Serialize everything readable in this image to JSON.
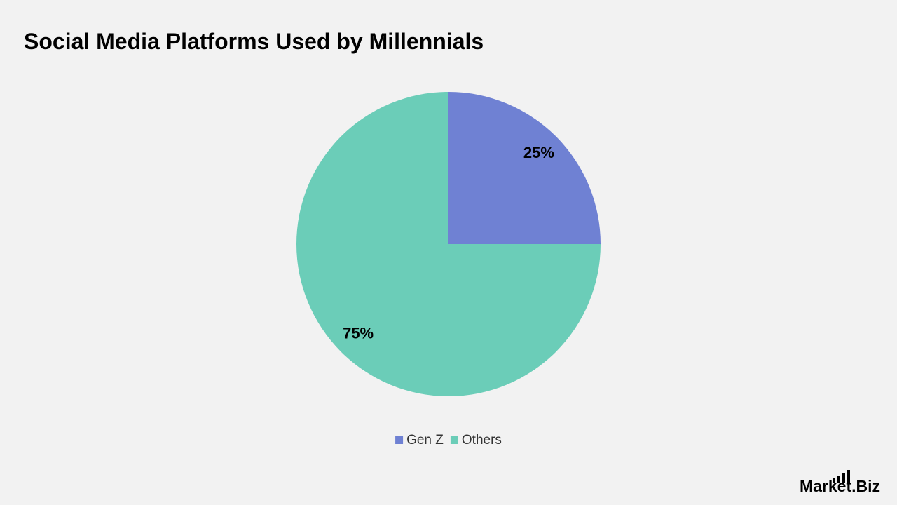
{
  "chart_data": {
    "type": "pie",
    "title": "Social Media Platforms Used by Millennials",
    "categories": [
      "Gen Z",
      "Others"
    ],
    "values": [
      25,
      75
    ],
    "value_labels": [
      "25%",
      "75%"
    ],
    "colors": [
      "#6f81d3",
      "#6bcdb8"
    ],
    "legend": "bottom"
  },
  "logo": "Market.Biz"
}
